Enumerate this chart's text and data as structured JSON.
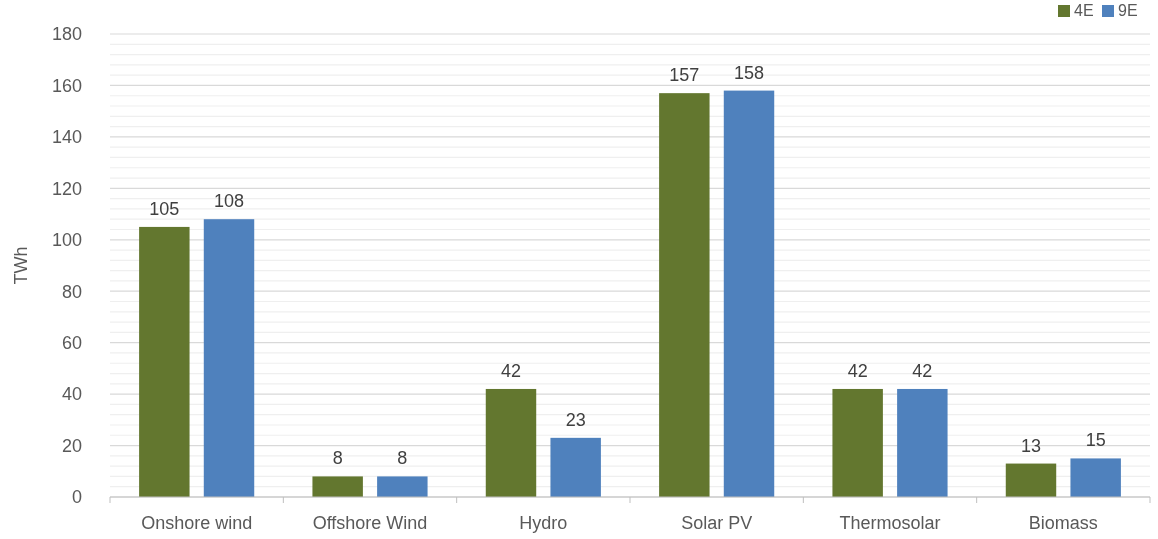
{
  "chart_data": {
    "type": "bar",
    "ylabel": "TWh",
    "categories": [
      "Onshore wind",
      "Offshore Wind",
      "Hydro",
      "Solar PV",
      "Thermosolar",
      "Biomass"
    ],
    "series": [
      {
        "name": "4E",
        "color": "#63772f",
        "values": [
          105,
          8,
          42,
          157,
          42,
          13
        ]
      },
      {
        "name": "9E",
        "color": "#4f81bd",
        "values": [
          108,
          8,
          23,
          158,
          42,
          15
        ]
      }
    ],
    "ylim": [
      0,
      180
    ],
    "yticks": [
      0,
      {
        "value": 4,
        "label": null
      },
      {
        "value": 8,
        "label": null
      },
      {
        "value": 12,
        "label": null
      },
      {
        "value": 16,
        "label": null
      },
      20,
      {
        "value": 24,
        "label": null
      },
      {
        "value": 28,
        "label": null
      },
      {
        "value": 32,
        "label": null
      },
      {
        "value": 36,
        "label": null
      },
      40,
      {
        "value": 44,
        "label": null
      },
      {
        "value": 48,
        "label": null
      },
      {
        "value": 52,
        "label": null
      },
      {
        "value": 56,
        "label": null
      },
      60,
      {
        "value": 64,
        "label": null
      },
      {
        "value": 68,
        "label": null
      },
      {
        "value": 72,
        "label": null
      },
      {
        "value": 76,
        "label": null
      },
      80,
      {
        "value": 84,
        "label": null
      },
      {
        "value": 88,
        "label": null
      },
      {
        "value": 92,
        "label": null
      },
      {
        "value": 96,
        "label": null
      },
      100,
      {
        "value": 104,
        "label": null
      },
      {
        "value": 108,
        "label": null
      },
      {
        "value": 112,
        "label": null
      },
      {
        "value": 116,
        "label": null
      },
      120,
      {
        "value": 124,
        "label": null
      },
      {
        "value": 128,
        "label": null
      },
      {
        "value": 132,
        "label": null
      },
      {
        "value": 136,
        "label": null
      },
      140,
      {
        "value": 144,
        "label": null
      },
      {
        "value": 148,
        "label": null
      },
      {
        "value": 152,
        "label": null
      },
      {
        "value": 156,
        "label": null
      },
      160,
      {
        "value": 164,
        "label": null
      },
      {
        "value": 168,
        "label": null
      },
      {
        "value": 172,
        "label": null
      },
      {
        "value": 176,
        "label": null
      },
      180
    ],
    "grid": "y",
    "legend": "top right",
    "data_labels": true
  }
}
